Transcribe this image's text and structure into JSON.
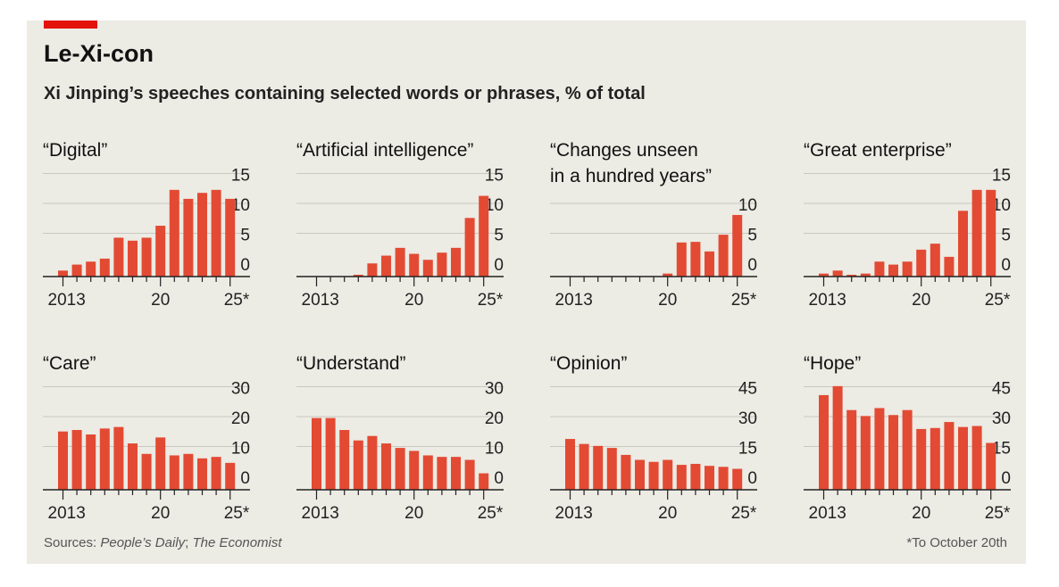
{
  "title": "Le-Xi-con",
  "subtitle": "Xi Jinping’s speeches containing selected words or phrases, % of total",
  "source_label": "Sources:",
  "source_1": "People’s Daily",
  "source_sep": ";",
  "source_2": "The Economist",
  "footnote": "*To October 20th",
  "colors": {
    "bar": "#e34a33",
    "background": "#ecebe4",
    "accent": "#e3120b",
    "grid": "#c9c8c0",
    "axis": "#222222"
  },
  "chart_data": [
    {
      "type": "bar",
      "title": [
        "“Digital”"
      ],
      "x": [
        2013,
        2014,
        2015,
        2016,
        2017,
        2018,
        2019,
        2020,
        2021,
        2022,
        2023,
        2024,
        2025
      ],
      "values": [
        1,
        2,
        2.5,
        3,
        6.5,
        6,
        6.5,
        8.5,
        14.5,
        13,
        14,
        14.5,
        13
      ],
      "ylim": [
        0,
        15
      ],
      "yticks": [
        "15",
        "10",
        "5",
        "0"
      ],
      "ytick_values": [
        15,
        10,
        5,
        0
      ],
      "xtick_labels": [
        "2013",
        "20",
        "25*"
      ]
    },
    {
      "type": "bar",
      "title": [
        "“Artificial intelligence”"
      ],
      "x": [
        2013,
        2014,
        2015,
        2016,
        2017,
        2018,
        2019,
        2020,
        2021,
        2022,
        2023,
        2024,
        2025
      ],
      "values": [
        0,
        0,
        0,
        0.3,
        2.2,
        3.5,
        4.8,
        3.8,
        2.8,
        4,
        4.8,
        9.8,
        13.5
      ],
      "ylim": [
        0,
        15
      ],
      "yticks": [
        "15",
        "10",
        "5",
        "0"
      ],
      "ytick_values": [
        15,
        10,
        5,
        0
      ],
      "xtick_labels": [
        "2013",
        "20",
        "25*"
      ]
    },
    {
      "type": "bar",
      "title": [
        "“Changes unseen",
        "in a hundred years”"
      ],
      "x": [
        2013,
        2014,
        2015,
        2016,
        2017,
        2018,
        2019,
        2020,
        2021,
        2022,
        2023,
        2024,
        2025
      ],
      "values": [
        0,
        0,
        0,
        0,
        0,
        0,
        0,
        0.5,
        5.7,
        5.8,
        4.2,
        7,
        10.3
      ],
      "ylim": [
        0,
        15
      ],
      "yticks": [
        "10",
        "5",
        "0"
      ],
      "ytick_values": [
        10,
        5,
        0
      ],
      "xtick_labels": [
        "2013",
        "20",
        "25*"
      ]
    },
    {
      "type": "bar",
      "title": [
        "“Great enterprise”"
      ],
      "x": [
        2013,
        2014,
        2015,
        2016,
        2017,
        2018,
        2019,
        2020,
        2021,
        2022,
        2023,
        2024,
        2025
      ],
      "values": [
        0.5,
        1,
        0.3,
        0.5,
        2.5,
        2,
        2.5,
        4.5,
        5.5,
        3.3,
        11,
        14.5,
        14.5
      ],
      "ylim": [
        0,
        15
      ],
      "yticks": [
        "15",
        "10",
        "5",
        "0"
      ],
      "ytick_values": [
        15,
        10,
        5,
        0
      ],
      "xtick_labels": [
        "2013",
        "20",
        "25*"
      ]
    },
    {
      "type": "bar",
      "title": [
        "“Care”"
      ],
      "x": [
        2013,
        2014,
        2015,
        2016,
        2017,
        2018,
        2019,
        2020,
        2021,
        2022,
        2023,
        2024,
        2025
      ],
      "values": [
        19.5,
        20,
        18.5,
        20.5,
        21,
        15.5,
        12,
        17.5,
        11.5,
        12,
        10.5,
        11,
        9
      ],
      "ylim": [
        0,
        30
      ],
      "yticks": [
        "30",
        "20",
        "10",
        "0"
      ],
      "ytick_values": [
        30,
        20,
        10,
        0
      ],
      "xtick_labels": [
        "2013",
        "20",
        "25*"
      ]
    },
    {
      "type": "bar",
      "title": [
        "“Understand”"
      ],
      "x": [
        2013,
        2014,
        2015,
        2016,
        2017,
        2018,
        2019,
        2020,
        2021,
        2022,
        2023,
        2024,
        2025
      ],
      "values": [
        24,
        24,
        20,
        16.5,
        18,
        15.5,
        14,
        13,
        11.5,
        11,
        11,
        10,
        5.5
      ],
      "ylim": [
        0,
        30
      ],
      "yticks": [
        "30",
        "20",
        "10",
        "0"
      ],
      "ytick_values": [
        30,
        20,
        10,
        0
      ],
      "xtick_labels": [
        "2013",
        "20",
        "25*"
      ]
    },
    {
      "type": "bar",
      "title": [
        "“Opinion”"
      ],
      "x": [
        2013,
        2014,
        2015,
        2016,
        2017,
        2018,
        2019,
        2020,
        2021,
        2022,
        2023,
        2024,
        2025
      ],
      "values": [
        25.5,
        23,
        22,
        21,
        17.5,
        15,
        14,
        15,
        12.5,
        13,
        12,
        11.5,
        10.5
      ],
      "ylim": [
        0,
        45
      ],
      "yticks": [
        "45",
        "30",
        "15",
        "0"
      ],
      "ytick_values": [
        45,
        30,
        15,
        0
      ],
      "xtick_labels": [
        "2013",
        "20",
        "25*"
      ]
    },
    {
      "type": "bar",
      "title": [
        "“Hope”"
      ],
      "x": [
        2013,
        2014,
        2015,
        2016,
        2017,
        2018,
        2019,
        2020,
        2021,
        2022,
        2023,
        2024,
        2025
      ],
      "values": [
        47.5,
        52,
        40,
        37,
        41,
        37.5,
        40,
        30.5,
        31,
        34,
        31.5,
        32,
        23.5
      ],
      "ylim": [
        0,
        45
      ],
      "yticks": [
        "45",
        "30",
        "15",
        "0"
      ],
      "ytick_values": [
        45,
        30,
        15,
        0
      ],
      "xtick_labels": [
        "2013",
        "20",
        "25*"
      ]
    }
  ]
}
